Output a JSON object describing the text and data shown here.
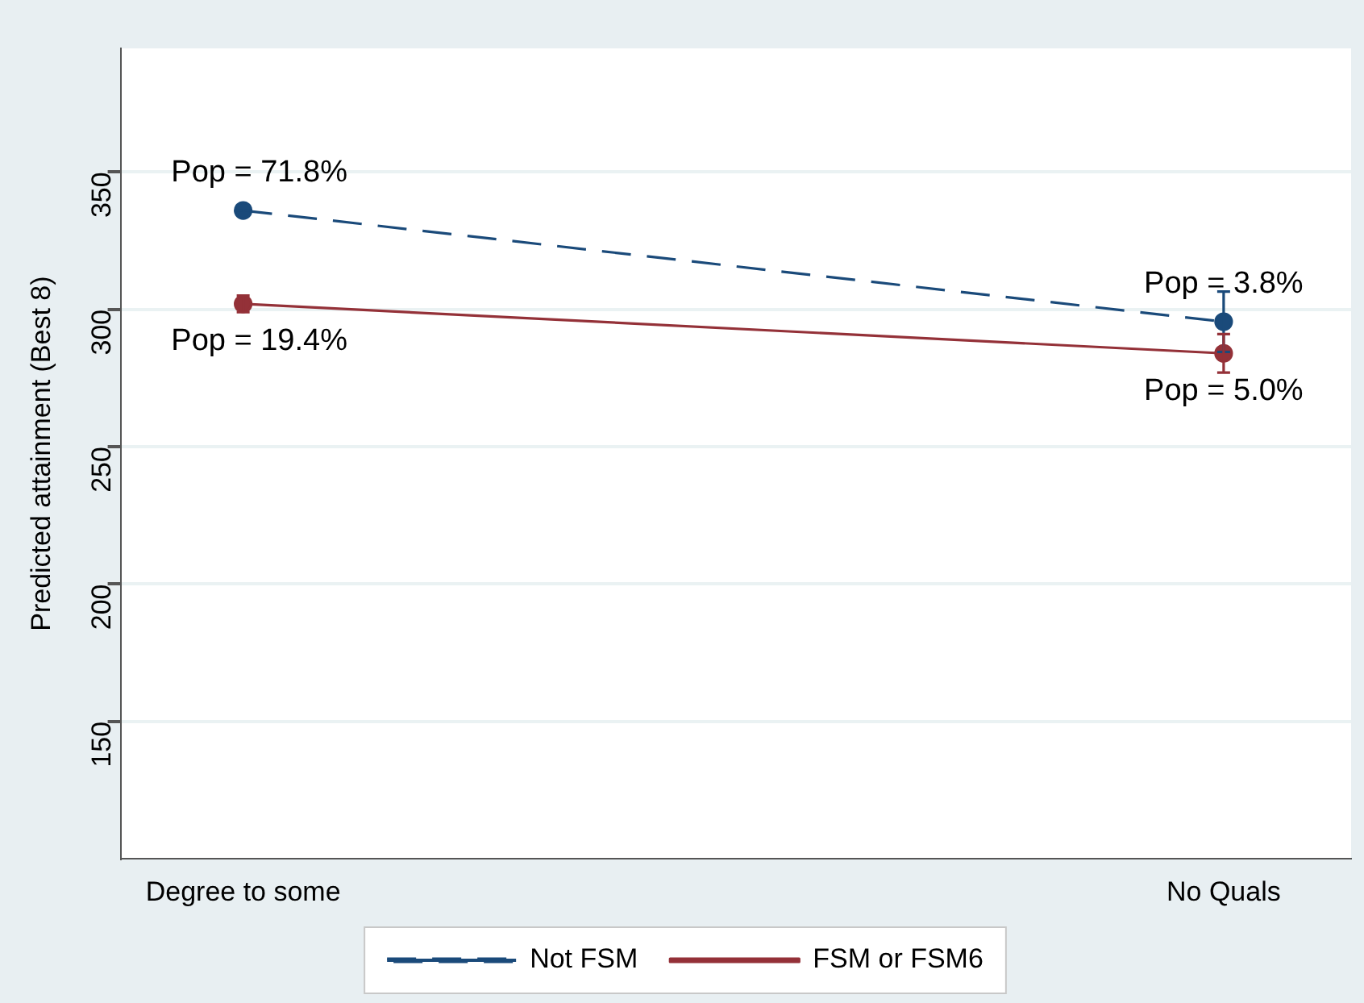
{
  "chart_data": {
    "type": "line",
    "ylabel": "Predicted attainment (Best 8)",
    "categories": [
      "Degree to some",
      "No Quals"
    ],
    "series": [
      {
        "name": "Not FSM",
        "color": "#1a4a7a",
        "values": [
          336,
          295.5
        ],
        "errors": [
          1,
          11
        ],
        "line_style": "dashed"
      },
      {
        "name": "FSM or FSM6",
        "color": "#943138",
        "values": [
          302,
          284
        ],
        "errors": [
          3,
          7
        ],
        "line_style": "solid"
      }
    ],
    "ylim": [
      100,
      395
    ],
    "yticks": [
      150,
      200,
      250,
      300,
      350
    ],
    "grid": "y",
    "legend": "bottom",
    "marker": "circle",
    "annotations": [
      {
        "text": "Pop = 71.8%",
        "x": "Degree to some",
        "y": 336
      },
      {
        "text": "Pop = 19.4%",
        "x": "Degree to some",
        "y": 302
      },
      {
        "text": "Pop = 3.8%",
        "x": "No Quals",
        "y": 295.5
      },
      {
        "text": "Pop = 5.0%",
        "x": "No Quals",
        "y": 284
      }
    ]
  }
}
